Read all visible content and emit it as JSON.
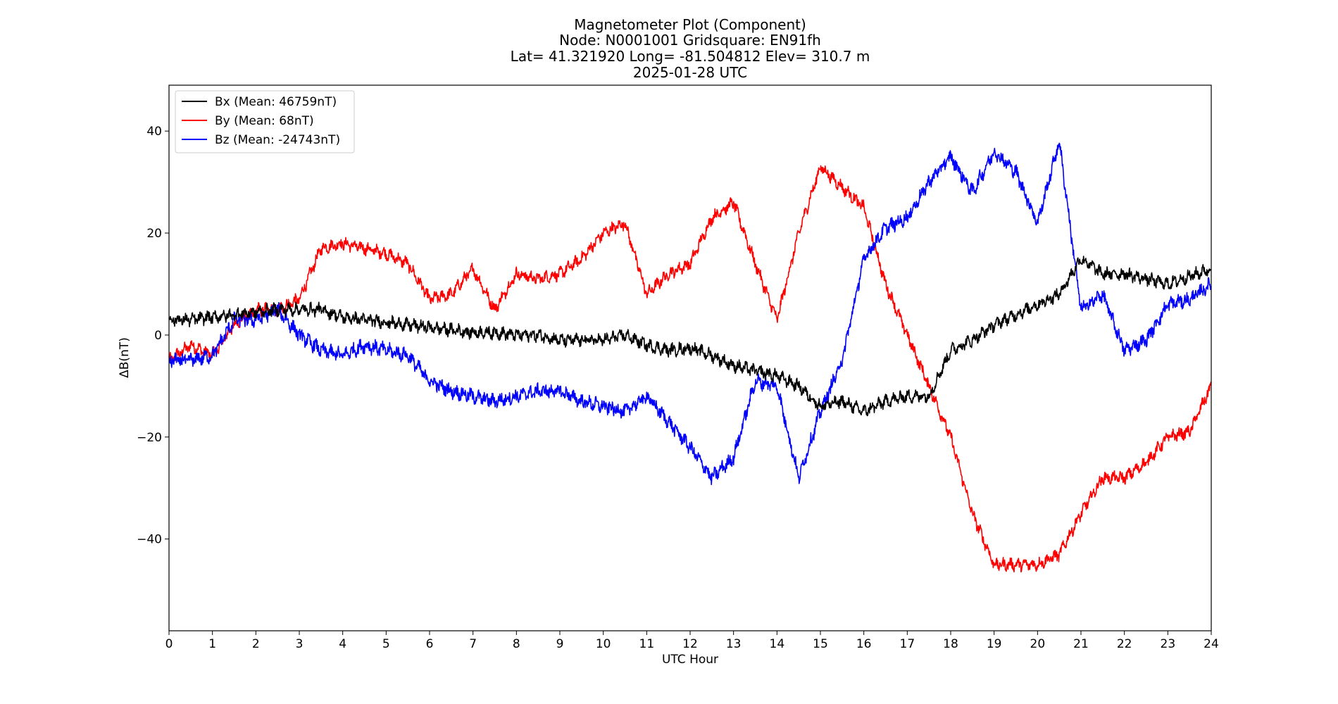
{
  "chart_data": {
    "type": "line",
    "title_lines": [
      "Magnetometer Plot (Component)",
      "Node:  N0001001     Gridsquare:  EN91fh",
      "Lat= 41.321920    Long= -81.504812    Elev= 310.7 m",
      "2025-01-28  UTC"
    ],
    "xlabel": "UTC Hour",
    "ylabel": "ΔB(nT)",
    "xlim": [
      0,
      24
    ],
    "ylim": [
      -58,
      49
    ],
    "xticks": [
      0,
      1,
      2,
      3,
      4,
      5,
      6,
      7,
      8,
      9,
      10,
      11,
      12,
      13,
      14,
      15,
      16,
      17,
      18,
      19,
      20,
      21,
      22,
      23,
      24
    ],
    "yticks": [
      -40,
      -20,
      0,
      20,
      40
    ],
    "ytick_labels": [
      "−40",
      "−20",
      "0",
      "20",
      "40"
    ],
    "grid": false,
    "legend_position": "top-left",
    "x": [
      0,
      0.5,
      1,
      1.5,
      2,
      2.5,
      3,
      3.5,
      4,
      4.5,
      5,
      5.5,
      6,
      6.5,
      7,
      7.5,
      8,
      8.5,
      9,
      9.5,
      10,
      10.5,
      11,
      11.5,
      12,
      12.5,
      13,
      13.5,
      14,
      14.5,
      15,
      15.5,
      16,
      16.5,
      17,
      17.5,
      18,
      18.5,
      19,
      19.5,
      20,
      20.5,
      21,
      21.5,
      22,
      22.5,
      23,
      23.5,
      24
    ],
    "series": [
      {
        "name": "Bx (Mean: 46759nT)",
        "color": "#000000",
        "values": [
          3,
          3,
          3.5,
          4,
          4.5,
          5,
          5,
          5,
          3.5,
          3,
          2.5,
          2,
          1.5,
          1,
          0.5,
          0.5,
          0,
          0,
          -1,
          -1,
          -1,
          0,
          -2,
          -3,
          -2.5,
          -4,
          -6,
          -7,
          -8,
          -10,
          -14,
          -13,
          -15,
          -13,
          -12,
          -12,
          -3,
          -1,
          2,
          4,
          6,
          8,
          15,
          12,
          12,
          11,
          10,
          11.5,
          13
        ]
      },
      {
        "name": "By (Mean: 68nT)",
        "color": "#ff0000",
        "values": [
          -5,
          -2,
          -4,
          2,
          5,
          5,
          7,
          17,
          18,
          17,
          16,
          14,
          7,
          8,
          13,
          5,
          12,
          11,
          12,
          15,
          20,
          22,
          8,
          12,
          14,
          23,
          26,
          14,
          3,
          20,
          33,
          29,
          25,
          10,
          0,
          -10,
          -20,
          -35,
          -45,
          -45,
          -45,
          -43,
          -35,
          -28,
          -28,
          -25,
          -20,
          -19,
          -10
        ]
      },
      {
        "name": "Bz (Mean: -24743nT)",
        "color": "#0000ff",
        "values": [
          -5,
          -5,
          -4,
          3,
          3,
          5,
          0,
          -3,
          -4,
          -2,
          -3,
          -4,
          -9,
          -11,
          -12,
          -13,
          -12,
          -11,
          -11,
          -13,
          -14,
          -15,
          -12,
          -17,
          -22,
          -28,
          -24,
          -9,
          -10,
          -28,
          -15,
          -5,
          15,
          21,
          23,
          30,
          35,
          28,
          36,
          32,
          22,
          38,
          5,
          8,
          -3,
          -1,
          6,
          7,
          10
        ]
      }
    ]
  }
}
